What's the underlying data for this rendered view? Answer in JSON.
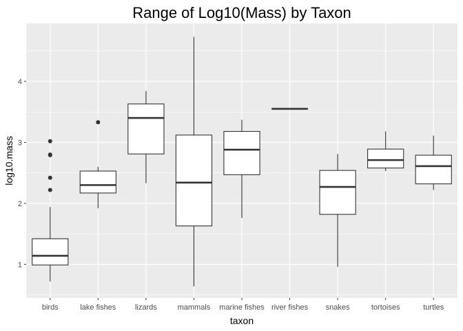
{
  "chart_data": {
    "type": "boxplot",
    "title": "Range of Log10(Mass) by Taxon",
    "xlabel": "taxon",
    "ylabel": "log10.mass",
    "ylim": [
      0.45,
      4.95
    ],
    "yticks": [
      1,
      2,
      3,
      4
    ],
    "grid": true,
    "categories": [
      "birds",
      "lake fishes",
      "lizards",
      "mammals",
      "marine fishes",
      "river fishes",
      "snakes",
      "tortoises",
      "turtles"
    ],
    "boxes": [
      {
        "category": "birds",
        "min": 0.72,
        "q1": 0.99,
        "median": 1.14,
        "q3": 1.42,
        "max": 1.94,
        "outliers": [
          2.22,
          2.42,
          2.79,
          2.8,
          3.02
        ]
      },
      {
        "category": "lake fishes",
        "min": 1.92,
        "q1": 2.17,
        "median": 2.3,
        "q3": 2.53,
        "max": 2.6,
        "outliers": [
          3.33
        ]
      },
      {
        "category": "lizards",
        "min": 2.33,
        "q1": 2.81,
        "median": 3.4,
        "q3": 3.63,
        "max": 3.84,
        "outliers": []
      },
      {
        "category": "mammals",
        "min": 0.64,
        "q1": 1.63,
        "median": 2.34,
        "q3": 3.12,
        "max": 4.73,
        "outliers": []
      },
      {
        "category": "marine fishes",
        "min": 1.76,
        "q1": 2.47,
        "median": 2.88,
        "q3": 3.18,
        "max": 3.37,
        "outliers": []
      },
      {
        "category": "river fishes",
        "min": 3.55,
        "q1": 3.55,
        "median": 3.55,
        "q3": 3.55,
        "max": 3.55,
        "outliers": []
      },
      {
        "category": "snakes",
        "min": 0.96,
        "q1": 1.82,
        "median": 2.27,
        "q3": 2.54,
        "max": 2.81,
        "outliers": []
      },
      {
        "category": "tortoises",
        "min": 2.53,
        "q1": 2.58,
        "median": 2.71,
        "q3": 2.89,
        "max": 3.18,
        "outliers": []
      },
      {
        "category": "turtles",
        "min": 2.22,
        "q1": 2.32,
        "median": 2.61,
        "q3": 2.79,
        "max": 3.11,
        "outliers": []
      }
    ],
    "colors": {
      "panel": "#ebebeb",
      "grid_major": "#ffffff",
      "box_fill": "#ffffff",
      "box_line": "#333333",
      "tick_text": "#4d4d4d",
      "tick_mark": "#333333"
    }
  }
}
